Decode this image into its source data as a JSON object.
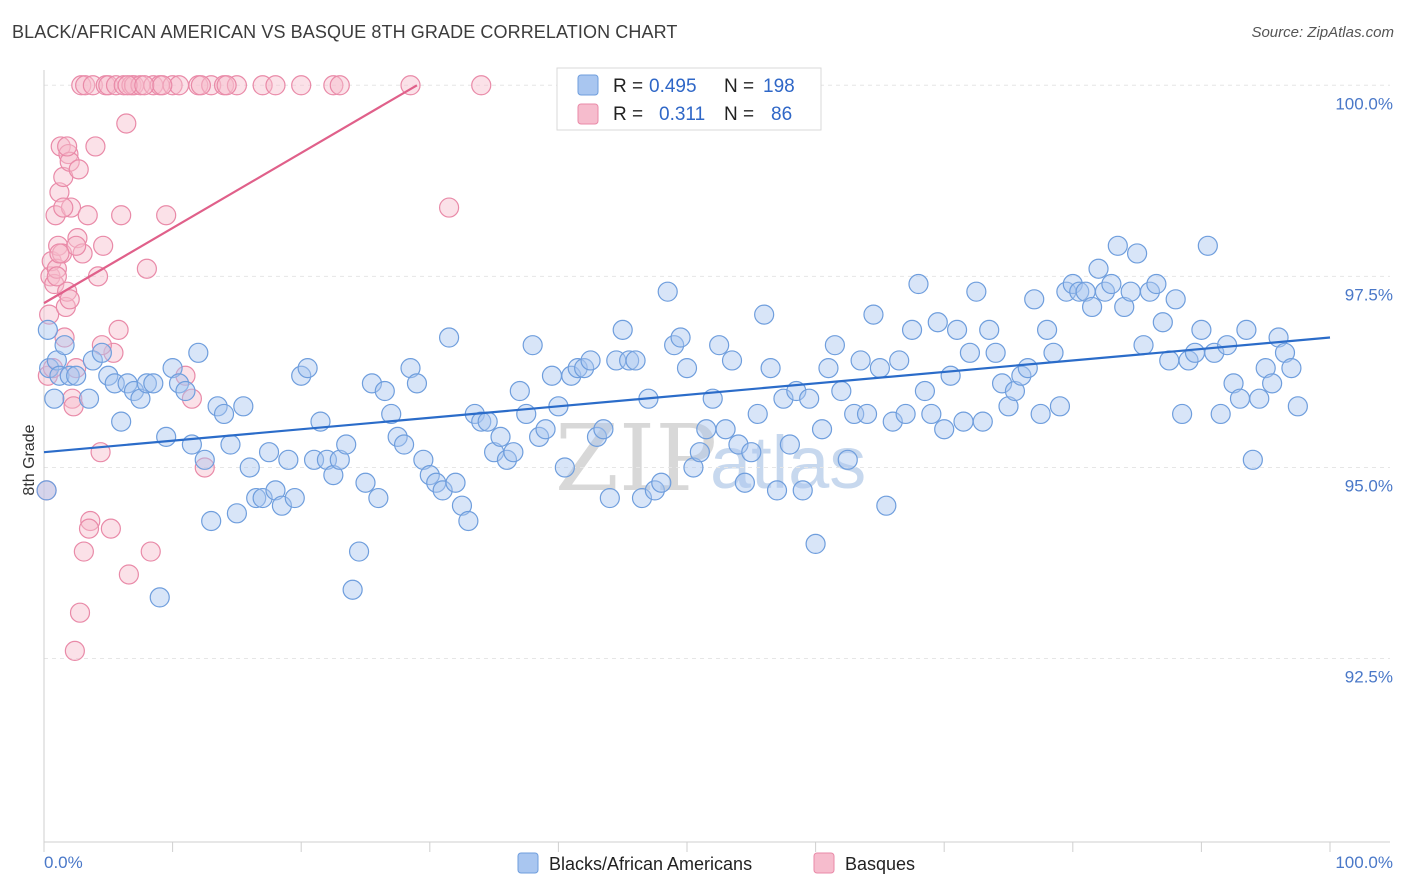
{
  "header": {
    "title": "BLACK/AFRICAN AMERICAN VS BASQUE 8TH GRADE CORRELATION CHART",
    "source": "Source: ZipAtlas.com"
  },
  "watermark": {
    "zip": "ZIP",
    "atlas": "atlas"
  },
  "colors": {
    "blue_fill": "#a9c6f0",
    "blue_stroke": "#6f9edd",
    "blue_line": "#2b6cc9",
    "pink_fill": "#f6bccd",
    "pink_stroke": "#e98aa8",
    "pink_line": "#e0608a",
    "grid": "#e6e6e6",
    "tick_text": "#4a78c8"
  },
  "legend": {
    "rows": [
      {
        "r_label": "R =",
        "r_value": "0.495",
        "n_label": "N =",
        "n_value": "198"
      },
      {
        "r_label": "R =",
        "r_value": "0.311",
        "n_label": "N =",
        "n_value": "86"
      }
    ]
  },
  "bottom_legend": [
    "Blacks/African Americans",
    "Basques"
  ],
  "chart_data": {
    "type": "scatter",
    "title": "BLACK/AFRICAN AMERICAN VS BASQUE 8TH GRADE CORRELATION CHART",
    "xlabel": "",
    "ylabel": "8th Grade",
    "xlim": [
      0,
      100
    ],
    "ylim": [
      90.1,
      100.2
    ],
    "x_tick_labels": [
      "0.0%",
      "100.0%"
    ],
    "y_ticks": [
      92.5,
      95.0,
      97.5,
      100.0
    ],
    "y_tick_labels": [
      "92.5%",
      "95.0%",
      "97.5%",
      "100.0%"
    ],
    "grid": "horizontal dashed",
    "legend_position": "top-center",
    "series": [
      {
        "name": "Blacks/African Americans",
        "r": 0.495,
        "n": 198,
        "trend": {
          "x": [
            0,
            100
          ],
          "y": [
            95.2,
            96.7
          ]
        },
        "points": [
          [
            0.2,
            94.7
          ],
          [
            0.3,
            96.8
          ],
          [
            0.4,
            96.3
          ],
          [
            0.8,
            95.9
          ],
          [
            1,
            96.4
          ],
          [
            1.2,
            96.2
          ],
          [
            1.6,
            96.6
          ],
          [
            2,
            96.2
          ],
          [
            2.5,
            96.2
          ],
          [
            3.5,
            95.9
          ],
          [
            3.8,
            96.4
          ],
          [
            4.5,
            96.5
          ],
          [
            5,
            96.2
          ],
          [
            5.5,
            96.1
          ],
          [
            6,
            95.6
          ],
          [
            6.5,
            96.1
          ],
          [
            7,
            96
          ],
          [
            7.5,
            95.9
          ],
          [
            8,
            96.1
          ],
          [
            8.5,
            96.1
          ],
          [
            9,
            93.3
          ],
          [
            9.5,
            95.4
          ],
          [
            10,
            96.3
          ],
          [
            10.5,
            96.1
          ],
          [
            11,
            96
          ],
          [
            11.5,
            95.3
          ],
          [
            12,
            96.5
          ],
          [
            12.5,
            95.1
          ],
          [
            13,
            94.3
          ],
          [
            13.5,
            95.8
          ],
          [
            14,
            95.7
          ],
          [
            14.5,
            95.3
          ],
          [
            15,
            94.4
          ],
          [
            15.5,
            95.8
          ],
          [
            16,
            95
          ],
          [
            16.5,
            94.6
          ],
          [
            17,
            94.6
          ],
          [
            17.5,
            95.2
          ],
          [
            18,
            94.7
          ],
          [
            18.5,
            94.5
          ],
          [
            19,
            95.1
          ],
          [
            19.5,
            94.6
          ],
          [
            20,
            96.2
          ],
          [
            20.5,
            96.3
          ],
          [
            21,
            95.1
          ],
          [
            21.5,
            95.6
          ],
          [
            22,
            95.1
          ],
          [
            22.5,
            94.9
          ],
          [
            23,
            95.1
          ],
          [
            23.5,
            95.3
          ],
          [
            24,
            93.4
          ],
          [
            24.5,
            93.9
          ],
          [
            25,
            94.8
          ],
          [
            25.5,
            96.1
          ],
          [
            26,
            94.6
          ],
          [
            26.5,
            96
          ],
          [
            27,
            95.7
          ],
          [
            27.5,
            95.4
          ],
          [
            28,
            95.3
          ],
          [
            28.5,
            96.3
          ],
          [
            29,
            96.1
          ],
          [
            29.5,
            95.1
          ],
          [
            30,
            94.9
          ],
          [
            30.5,
            94.8
          ],
          [
            31,
            94.7
          ],
          [
            31.5,
            96.7
          ],
          [
            32,
            94.8
          ],
          [
            32.5,
            94.5
          ],
          [
            33,
            94.3
          ],
          [
            33.5,
            95.7
          ],
          [
            34,
            95.6
          ],
          [
            34.5,
            95.6
          ],
          [
            35,
            95.2
          ],
          [
            35.5,
            95.4
          ],
          [
            36,
            95.1
          ],
          [
            36.5,
            95.2
          ],
          [
            37,
            96
          ],
          [
            37.5,
            95.7
          ],
          [
            38,
            96.6
          ],
          [
            38.5,
            95.4
          ],
          [
            39,
            95.5
          ],
          [
            39.5,
            96.2
          ],
          [
            40,
            95.8
          ],
          [
            40.5,
            95
          ],
          [
            41,
            96.2
          ],
          [
            41.5,
            96.3
          ],
          [
            42,
            96.3
          ],
          [
            42.5,
            96.4
          ],
          [
            43,
            95.4
          ],
          [
            43.5,
            95.5
          ],
          [
            44,
            94.6
          ],
          [
            44.5,
            96.4
          ],
          [
            45,
            96.8
          ],
          [
            45.5,
            96.4
          ],
          [
            46,
            96.4
          ],
          [
            46.5,
            94.6
          ],
          [
            47,
            95.9
          ],
          [
            47.5,
            94.7
          ],
          [
            48,
            94.8
          ],
          [
            48.5,
            97.3
          ],
          [
            49,
            96.6
          ],
          [
            49.5,
            96.7
          ],
          [
            50,
            96.3
          ],
          [
            50.5,
            95
          ],
          [
            51,
            95.2
          ],
          [
            51.5,
            95.5
          ],
          [
            52,
            95.9
          ],
          [
            52.5,
            96.6
          ],
          [
            53,
            95.5
          ],
          [
            53.5,
            96.4
          ],
          [
            54,
            95.3
          ],
          [
            54.5,
            94.8
          ],
          [
            55,
            95.2
          ],
          [
            55.5,
            95.7
          ],
          [
            56,
            97
          ],
          [
            56.5,
            96.3
          ],
          [
            57,
            94.7
          ],
          [
            57.5,
            95.9
          ],
          [
            58,
            95.3
          ],
          [
            58.5,
            96
          ],
          [
            59,
            94.7
          ],
          [
            59.5,
            95.9
          ],
          [
            60,
            94
          ],
          [
            60.5,
            95.5
          ],
          [
            61,
            96.3
          ],
          [
            61.5,
            96.6
          ],
          [
            62,
            96
          ],
          [
            62.5,
            95.1
          ],
          [
            63,
            95.7
          ],
          [
            63.5,
            96.4
          ],
          [
            64,
            95.7
          ],
          [
            64.5,
            97
          ],
          [
            65,
            96.3
          ],
          [
            65.5,
            94.5
          ],
          [
            66,
            95.6
          ],
          [
            66.5,
            96.4
          ],
          [
            67,
            95.7
          ],
          [
            67.5,
            96.8
          ],
          [
            68,
            97.4
          ],
          [
            68.5,
            96
          ],
          [
            69,
            95.7
          ],
          [
            69.5,
            96.9
          ],
          [
            70,
            95.5
          ],
          [
            70.5,
            96.2
          ],
          [
            71,
            96.8
          ],
          [
            71.5,
            95.6
          ],
          [
            72,
            96.5
          ],
          [
            72.5,
            97.3
          ],
          [
            73,
            95.6
          ],
          [
            73.5,
            96.8
          ],
          [
            74,
            96.5
          ],
          [
            74.5,
            96.1
          ],
          [
            75,
            95.8
          ],
          [
            75.5,
            96
          ],
          [
            76,
            96.2
          ],
          [
            76.5,
            96.3
          ],
          [
            77,
            97.2
          ],
          [
            77.5,
            95.7
          ],
          [
            78,
            96.8
          ],
          [
            78.5,
            96.5
          ],
          [
            79,
            95.8
          ],
          [
            79.5,
            97.3
          ],
          [
            80,
            97.4
          ],
          [
            80.5,
            97.3
          ],
          [
            81,
            97.3
          ],
          [
            81.5,
            97.1
          ],
          [
            82,
            97.6
          ],
          [
            82.5,
            97.3
          ],
          [
            83,
            97.4
          ],
          [
            83.5,
            97.9
          ],
          [
            84,
            97.1
          ],
          [
            84.5,
            97.3
          ],
          [
            85,
            97.8
          ],
          [
            85.5,
            96.6
          ],
          [
            86,
            97.3
          ],
          [
            86.5,
            97.4
          ],
          [
            87,
            96.9
          ],
          [
            87.5,
            96.4
          ],
          [
            88,
            97.2
          ],
          [
            88.5,
            95.7
          ],
          [
            89,
            96.4
          ],
          [
            89.5,
            96.5
          ],
          [
            90,
            96.8
          ],
          [
            90.5,
            97.9
          ],
          [
            91,
            96.5
          ],
          [
            91.5,
            95.7
          ],
          [
            92,
            96.6
          ],
          [
            92.5,
            96.1
          ],
          [
            93,
            95.9
          ],
          [
            93.5,
            96.8
          ],
          [
            94,
            95.1
          ],
          [
            94.5,
            95.9
          ],
          [
            95,
            96.3
          ],
          [
            95.5,
            96.1
          ],
          [
            96,
            96.7
          ],
          [
            96.5,
            96.5
          ],
          [
            97,
            96.3
          ],
          [
            97.5,
            95.8
          ]
        ]
      },
      {
        "name": "Basques",
        "r": 0.311,
        "n": 86,
        "trend": {
          "x": [
            0,
            29
          ],
          "y": [
            97.15,
            100.0
          ]
        },
        "points": [
          [
            0.2,
            94.7
          ],
          [
            0.3,
            96.2
          ],
          [
            0.4,
            97
          ],
          [
            0.5,
            97.5
          ],
          [
            0.6,
            97.7
          ],
          [
            0.8,
            97.4
          ],
          [
            0.9,
            98.3
          ],
          [
            1,
            97.6
          ],
          [
            1.1,
            97.9
          ],
          [
            1.2,
            98.6
          ],
          [
            1.3,
            99.2
          ],
          [
            1.4,
            97.8
          ],
          [
            1.5,
            98.8
          ],
          [
            1.6,
            96.7
          ],
          [
            1.7,
            97.1
          ],
          [
            1.8,
            97.3
          ],
          [
            1.9,
            99.1
          ],
          [
            2,
            99
          ],
          [
            2.1,
            98.4
          ],
          [
            2.2,
            95.9
          ],
          [
            2.3,
            95.8
          ],
          [
            2.4,
            92.6
          ],
          [
            2.5,
            96.3
          ],
          [
            2.6,
            98
          ],
          [
            2.7,
            98.9
          ],
          [
            2.8,
            93.1
          ],
          [
            2.9,
            100
          ],
          [
            3,
            97.8
          ],
          [
            3.2,
            100
          ],
          [
            3.4,
            98.3
          ],
          [
            3.6,
            94.3
          ],
          [
            3.8,
            100
          ],
          [
            4,
            99.2
          ],
          [
            4.2,
            97.5
          ],
          [
            4.4,
            95.2
          ],
          [
            4.6,
            97.9
          ],
          [
            4.8,
            100
          ],
          [
            5,
            100
          ],
          [
            5.2,
            94.2
          ],
          [
            5.4,
            96.5
          ],
          [
            5.6,
            100
          ],
          [
            5.8,
            96.8
          ],
          [
            6,
            98.3
          ],
          [
            6.2,
            100
          ],
          [
            6.4,
            99.5
          ],
          [
            6.6,
            93.6
          ],
          [
            6.8,
            100
          ],
          [
            7,
            100
          ],
          [
            7.5,
            100
          ],
          [
            8,
            97.6
          ],
          [
            8.3,
            93.9
          ],
          [
            8.5,
            100
          ],
          [
            9,
            100
          ],
          [
            9.5,
            98.3
          ],
          [
            10,
            100
          ],
          [
            10.5,
            100
          ],
          [
            11,
            96.2
          ],
          [
            11.5,
            95.9
          ],
          [
            12,
            100
          ],
          [
            12.5,
            95
          ],
          [
            13,
            100
          ],
          [
            14,
            100
          ],
          [
            15,
            100
          ],
          [
            3.1,
            93.9
          ],
          [
            1.8,
            99.2
          ],
          [
            2.5,
            97.9
          ],
          [
            3.5,
            94.2
          ],
          [
            4.5,
            96.6
          ],
          [
            6.5,
            100
          ],
          [
            7.8,
            100
          ],
          [
            9.2,
            100
          ],
          [
            12.2,
            100
          ],
          [
            14.2,
            100
          ],
          [
            17,
            100
          ],
          [
            18,
            100
          ],
          [
            20,
            100
          ],
          [
            22.5,
            100
          ],
          [
            23,
            100
          ],
          [
            28.5,
            100
          ],
          [
            31.5,
            98.4
          ],
          [
            34,
            100
          ],
          [
            0.7,
            96.3
          ],
          [
            1,
            97.5
          ],
          [
            2,
            97.2
          ],
          [
            1.5,
            98.4
          ],
          [
            1.2,
            97.8
          ]
        ]
      }
    ]
  }
}
